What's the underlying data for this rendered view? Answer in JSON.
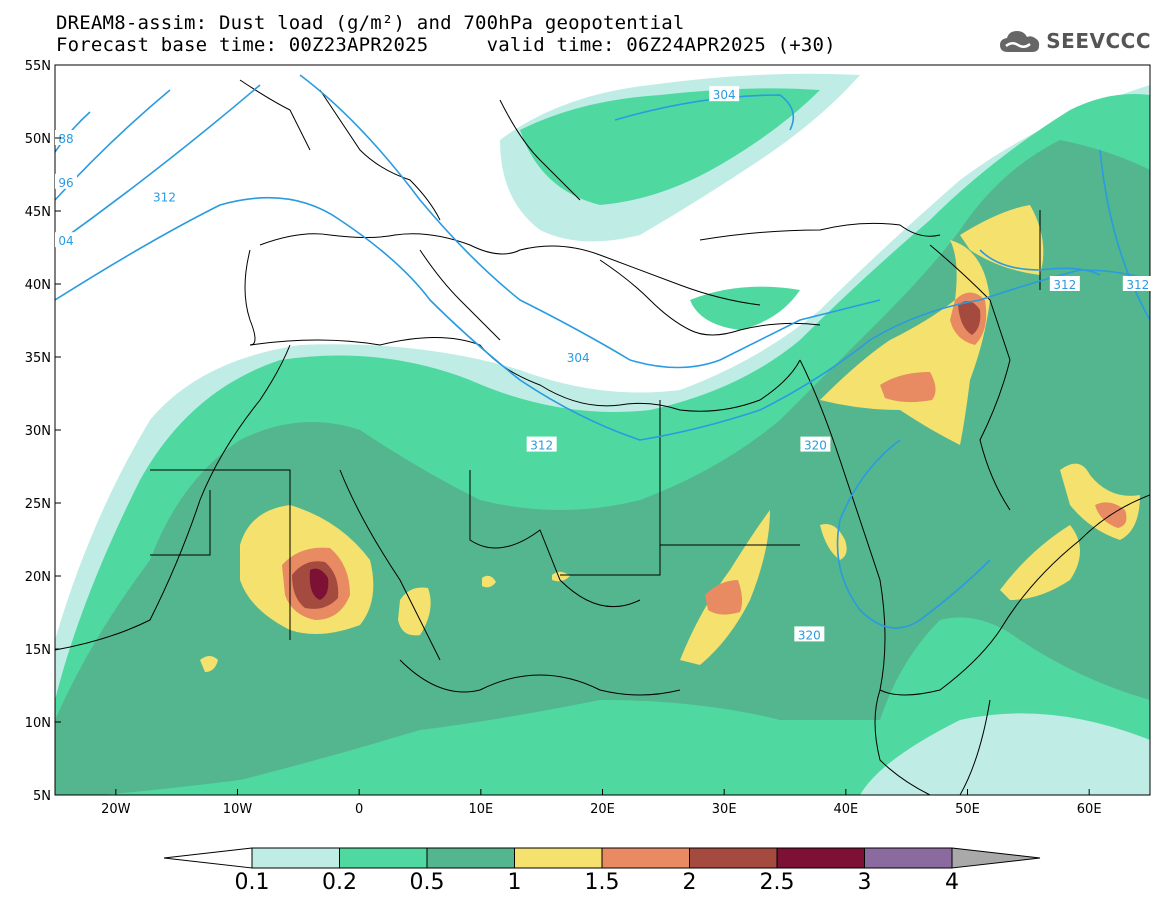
{
  "title": {
    "line1": "DREAM8-assim: Dust load (g/m²) and 700hPa geopotential",
    "line2": "Forecast base time: 00Z23APR2025     valid time: 06Z24APR2025 (+30)"
  },
  "logo": {
    "text": "SEEVCCC",
    "icon": "cloud-icon"
  },
  "map": {
    "projection": "lat-lon",
    "lon_range": [
      -25,
      65
    ],
    "lat_range": [
      5,
      55
    ],
    "lon_ticks": [
      {
        "value": -20,
        "label": "20W"
      },
      {
        "value": -10,
        "label": "10W"
      },
      {
        "value": 0,
        "label": "0"
      },
      {
        "value": 10,
        "label": "10E"
      },
      {
        "value": 20,
        "label": "20E"
      },
      {
        "value": 30,
        "label": "30E"
      },
      {
        "value": 40,
        "label": "40E"
      },
      {
        "value": 50,
        "label": "50E"
      },
      {
        "value": 60,
        "label": "60E"
      }
    ],
    "lat_ticks": [
      {
        "value": 55,
        "label": "55N"
      },
      {
        "value": 50,
        "label": "50N"
      },
      {
        "value": 45,
        "label": "45N"
      },
      {
        "value": 40,
        "label": "40N"
      },
      {
        "value": 35,
        "label": "35N"
      },
      {
        "value": 30,
        "label": "30N"
      },
      {
        "value": 25,
        "label": "25N"
      },
      {
        "value": 20,
        "label": "20N"
      },
      {
        "value": 15,
        "label": "15N"
      },
      {
        "value": 10,
        "label": "10N"
      },
      {
        "value": 5,
        "label": "5N"
      }
    ],
    "contour_labels": [
      {
        "text": "88",
        "lon": -25,
        "lat": 50
      },
      {
        "text": "96",
        "lon": -25,
        "lat": 47
      },
      {
        "text": "04",
        "lon": -25,
        "lat": 43
      },
      {
        "text": "312",
        "lon": -16,
        "lat": 46
      },
      {
        "text": "304",
        "lon": 30,
        "lat": 53
      },
      {
        "text": "304",
        "lon": 18,
        "lat": 35
      },
      {
        "text": "312",
        "lon": 15,
        "lat": 29
      },
      {
        "text": "320",
        "lon": 37.5,
        "lat": 29
      },
      {
        "text": "320",
        "lon": 37,
        "lat": 16
      },
      {
        "text": "312",
        "lon": 58,
        "lat": 40
      },
      {
        "text": "312",
        "lon": 64,
        "lat": 40
      }
    ]
  },
  "colorbar": {
    "labels": [
      "0.1",
      "0.2",
      "0.5",
      "1",
      "1.5",
      "2",
      "2.5",
      "3",
      "4"
    ],
    "colors": [
      "#bfede6",
      "#4fd9a0",
      "#54b68e",
      "#f4e16e",
      "#e88a62",
      "#a54a3e",
      "#7d1035",
      "#8b6aa0"
    ],
    "over_color": "#a9a9a9"
  },
  "palette": {
    "very_light": "#bfede6",
    "light": "#4fd9a0",
    "mid": "#54b68e",
    "yellow": "#f4e16e",
    "orange": "#e88a62",
    "brown": "#a54a3e",
    "dark": "#7d1035",
    "contour": "#2a9be0"
  }
}
